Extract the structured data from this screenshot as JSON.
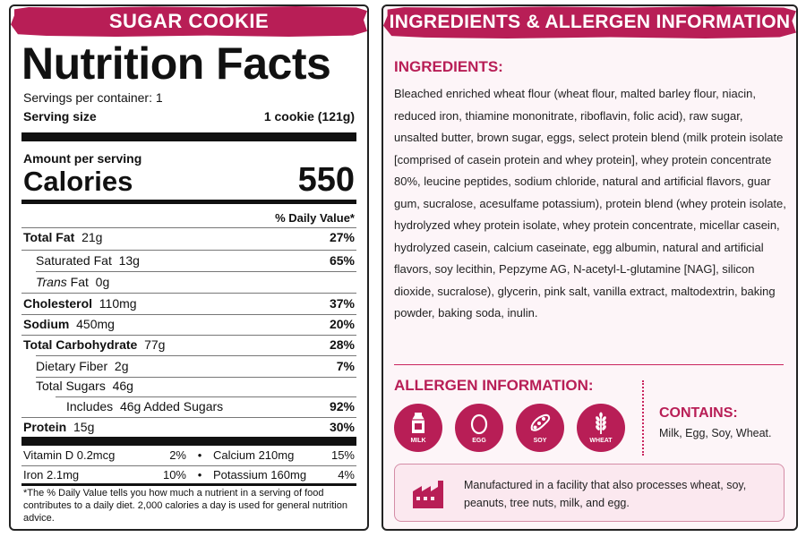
{
  "label": {
    "product_name": "SUGAR COOKIE",
    "title": "Nutrition Facts",
    "servings": "Servings per container: 1",
    "serving_size_label": "Serving size",
    "serving_size_value": "1 cookie (121g)",
    "amount_per_serving": "Amount per serving",
    "calories_label": "Calories",
    "calories_value": "550",
    "dv_header": "% Daily Value*",
    "nutrients": [
      {
        "name": "Total Fat",
        "amount": "21g",
        "dv": "27%"
      },
      {
        "name": "Saturated Fat",
        "amount": "13g",
        "dv": "65%"
      },
      {
        "name": "Trans",
        "name_suffix": "Fat",
        "amount": "0g",
        "dv": ""
      },
      {
        "name": "Cholesterol",
        "amount": "110mg",
        "dv": "37%"
      },
      {
        "name": "Sodium",
        "amount": "450mg",
        "dv": "20%"
      },
      {
        "name": "Total Carbohydrate",
        "amount": "77g",
        "dv": "28%"
      },
      {
        "name": "Dietary Fiber",
        "amount": "2g",
        "dv": "7%"
      },
      {
        "name": "Total Sugars",
        "amount": "46g",
        "dv": ""
      },
      {
        "name": "Includes",
        "amount": "46g Added Sugars",
        "dv": "92%"
      },
      {
        "name": "Protein",
        "amount": "15g",
        "dv": "30%"
      }
    ],
    "micronutrients": [
      {
        "left_name": "Vitamin D 0.2mcg",
        "left_dv": "2%",
        "right_name": "Calcium 210mg",
        "right_dv": "15%"
      },
      {
        "left_name": "Iron 2.1mg",
        "left_dv": "10%",
        "right_name": "Potassium 160mg",
        "right_dv": "4%"
      }
    ],
    "separator": "•",
    "footnote": "*The % Daily Value tells you how much a nutrient in a serving of food contributes to a daily diet. 2,000 calories a day is used for general nutrition advice."
  },
  "info": {
    "banner_title": "INGREDIENTS & ALLERGEN INFORMATION",
    "ingredients_title": "INGREDIENTS:",
    "ingredients_text": "Bleached enriched wheat flour (wheat flour, malted barley flour, niacin, reduced iron, thiamine mononitrate, riboflavin, folic acid), raw sugar, unsalted butter, brown sugar, eggs, select protein blend (milk protein isolate [comprised of casein protein and whey protein], whey protein concentrate 80%, leucine peptides, sodium chloride, natural and artificial flavors, guar gum, sucralose, acesulfame potassium), protein blend (whey protein isolate, hydrolyzed whey protein isolate, whey protein concentrate, micellar casein, hydrolyzed casein, calcium caseinate, egg albumin, natural and artificial flavors, soy lecithin, Pepzyme AG, N-acetyl-L-glutamine [NAG], silicon dioxide, sucralose), glycerin, pink salt, vanilla extract, maltodextrin, baking powder, baking soda, inulin.",
    "allergen_title": "ALLERGEN INFORMATION:",
    "allergens": [
      {
        "label": "MILK",
        "icon": "milk-carton-icon"
      },
      {
        "label": "EGG",
        "icon": "egg-icon"
      },
      {
        "label": "SOY",
        "icon": "soybean-icon"
      },
      {
        "label": "WHEAT",
        "icon": "wheat-icon"
      }
    ],
    "contains_title": "CONTAINS:",
    "contains_list": "Milk, Egg, Soy, Wheat.",
    "facility_text": "Manufactured in a facility that also processes wheat, soy, peanuts, tree nuts, milk, and egg.",
    "facility_icon": "factory-icon"
  },
  "colors": {
    "accent": "#b81e56",
    "panel_bg": "#fdf5f8",
    "facility_bg": "#fbe8ef"
  }
}
